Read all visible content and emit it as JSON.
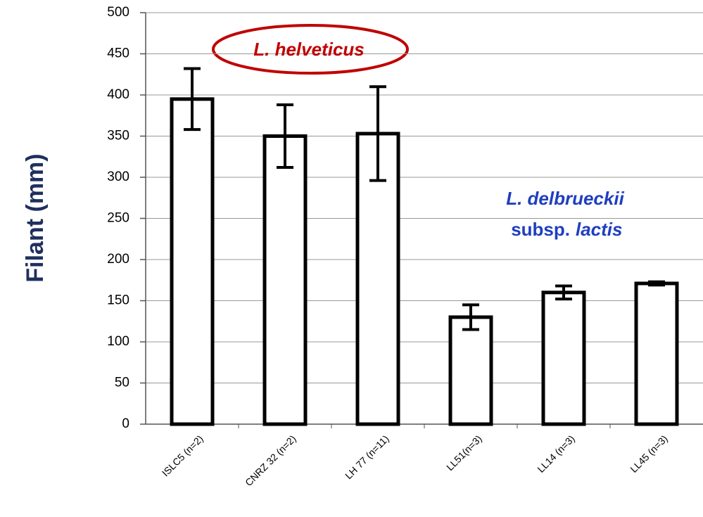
{
  "chart_data": {
    "type": "bar",
    "y_label": "Filant (mm)",
    "categories": [
      "ISLC5 (n=2)",
      "CNRZ 32 (n=2)",
      "LH 77 (n=11)",
      "LL51(n=3)",
      "LL14 (n=3)",
      "LL45 (n=3)"
    ],
    "values": [
      395,
      350,
      353,
      130,
      160,
      171
    ],
    "errors": [
      37,
      38,
      57,
      15,
      8,
      2
    ],
    "color": "#ffffff",
    "ylim": [
      0,
      500
    ],
    "yticks": [
      0,
      50,
      100,
      150,
      200,
      250,
      300,
      350,
      400,
      450,
      500
    ],
    "grid": true,
    "annotations": [
      {
        "text": "L. helveticus",
        "color": "#c00000"
      },
      {
        "text": "L. delbrueckii",
        "color": "#1f3fbf"
      },
      {
        "text": "subsp.",
        "color": "#1f3fbf"
      },
      {
        "text": "lactis",
        "color": "#1f3fbf"
      }
    ]
  }
}
